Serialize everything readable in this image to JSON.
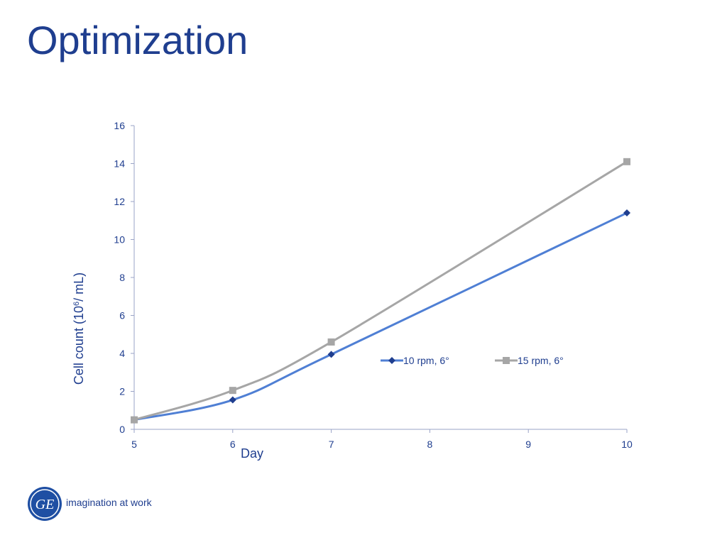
{
  "slide": {
    "title": "Optimization",
    "tagline": "imagination at work",
    "logo_text": "GE"
  },
  "colors": {
    "title": "#1f3e8f",
    "axis_text": "#1f3e8f",
    "axis_line": "#9aa3c7",
    "series_1_line": "#4f7fd4",
    "series_1_marker": "#1f3e8f",
    "series_2_line": "#a6a6a6",
    "series_2_marker": "#a6a6a6"
  },
  "chart_data": {
    "type": "line",
    "title": "",
    "xlabel": "Day",
    "ylabel_main": "Cell count  (10",
    "ylabel_sup": "6",
    "ylabel_tail": "/ mL)",
    "x": [
      5,
      6,
      7,
      10
    ],
    "xlim": [
      5,
      10
    ],
    "ylim": [
      0,
      16
    ],
    "x_ticks": [
      5,
      6,
      7,
      8,
      9,
      10
    ],
    "y_ticks": [
      0,
      2,
      4,
      6,
      8,
      10,
      12,
      14,
      16
    ],
    "grid": false,
    "legend_position": "inside, right of center",
    "series": [
      {
        "name": "10 rpm, 6°",
        "marker": "diamond",
        "values": [
          0.5,
          1.55,
          3.95,
          11.4
        ]
      },
      {
        "name": "15 rpm, 6°",
        "marker": "square",
        "values": [
          0.5,
          2.05,
          4.6,
          14.1
        ]
      }
    ]
  }
}
